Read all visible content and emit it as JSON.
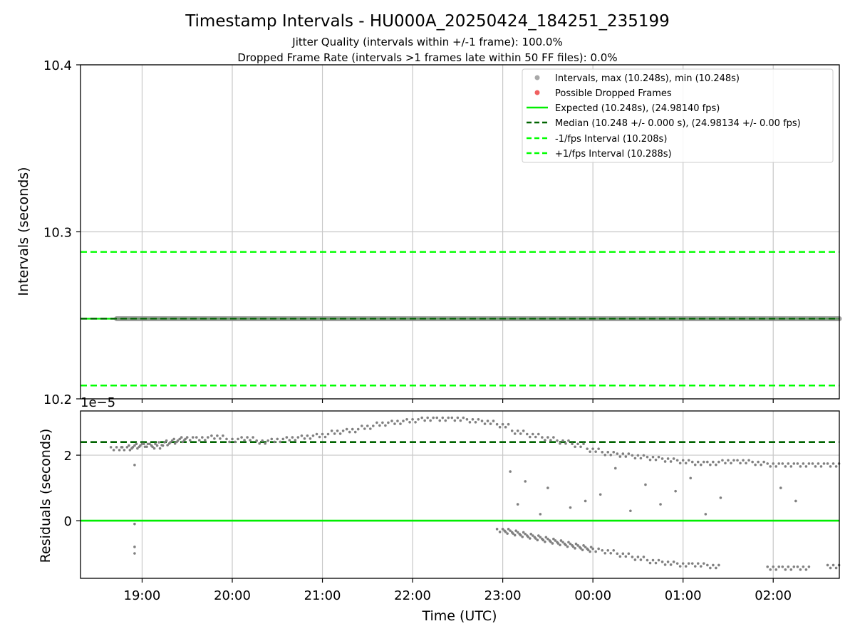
{
  "title": "Timestamp Intervals - HU000A_20250424_184251_235199",
  "subtitle1": "Jitter Quality (intervals within +/-1 frame): 100.0%",
  "subtitle2": "Dropped Frame Rate (intervals >1 frames late within 50 FF files): 0.0%",
  "colors": {
    "expected": "#00ee00",
    "median": "#006400",
    "bounds": "#00ff00",
    "intervals": "#808080",
    "dropped": "#f06060",
    "grid": "#c8c8c8"
  },
  "chart_data": [
    {
      "type": "scatter",
      "panel": "intervals",
      "xlabel": "",
      "ylabel": "Intervals (seconds)",
      "ylim": [
        10.2,
        10.4
      ],
      "yticks": [
        10.2,
        10.3,
        10.4
      ],
      "ytick_labels": [
        "10.2",
        "10.3",
        "10.4"
      ],
      "xlim": [
        "18:19",
        "02:44"
      ],
      "grid": true,
      "legend_placement": "upper-right",
      "lines": [
        {
          "name": "Expected (10.248s), (24.98140 fps)",
          "y": 10.248,
          "style": "solid",
          "color_key": "expected"
        },
        {
          "name": "Median (10.248 +/- 0.000 s), (24.98134 +/- 0.00 fps)",
          "y": 10.248,
          "style": "dashed",
          "color_key": "median"
        },
        {
          "name": "-1/fps Interval (10.208s)",
          "y": 10.208,
          "style": "dashed",
          "color_key": "bounds"
        },
        {
          "name": "+1/fps Interval (10.288s)",
          "y": 10.288,
          "style": "dashed",
          "color_key": "bounds"
        }
      ],
      "series": [
        {
          "name": "Intervals, max (10.248s), min (10.248s)",
          "y": 10.248,
          "x_start": "18:43",
          "x_end": "02:44"
        },
        {
          "name": "Possible Dropped Frames",
          "values": []
        }
      ]
    },
    {
      "type": "scatter",
      "panel": "residuals",
      "xlabel": "Time (UTC)",
      "ylabel": "Residuals (seconds)",
      "y_scale_label": "1e−5",
      "ylim": [
        -1.76,
        3.35
      ],
      "yticks": [
        0,
        2
      ],
      "ytick_labels": [
        "0",
        "2"
      ],
      "xticks": [
        "19:00",
        "20:00",
        "21:00",
        "22:00",
        "23:00",
        "00:00",
        "01:00",
        "02:00"
      ],
      "grid": true,
      "reference_lines": [
        {
          "name": "Expected",
          "y": 0,
          "style": "solid",
          "color_key": "expected"
        },
        {
          "name": "Median",
          "y": 2.4,
          "style": "dashed",
          "color_key": "median"
        }
      ],
      "series": [
        {
          "name": "Residuals",
          "x": [
            "18:43",
            "18:50",
            "18:55",
            "19:00",
            "19:05",
            "19:10",
            "19:15",
            "19:20",
            "19:25",
            "19:30",
            "19:40",
            "19:50",
            "20:00",
            "20:10",
            "20:20",
            "20:30",
            "20:40",
            "20:50",
            "21:00",
            "21:10",
            "21:20",
            "21:30",
            "21:40",
            "21:50",
            "22:00",
            "22:10",
            "22:20",
            "22:30",
            "22:40",
            "22:50",
            "23:00",
            "23:10",
            "23:20",
            "23:30",
            "23:40",
            "23:50",
            "00:00",
            "00:10",
            "00:20",
            "00:30",
            "00:40",
            "00:50",
            "01:00",
            "01:10",
            "01:20",
            "01:30",
            "01:40",
            "01:50",
            "02:00",
            "02:10",
            "02:20",
            "02:30",
            "02:40"
          ],
          "values": [
            2.2,
            2.2,
            2.25,
            2.3,
            2.3,
            2.25,
            2.35,
            2.4,
            2.45,
            2.5,
            2.5,
            2.55,
            2.45,
            2.5,
            2.4,
            2.45,
            2.5,
            2.55,
            2.6,
            2.7,
            2.75,
            2.85,
            2.95,
            3.0,
            3.05,
            3.1,
            3.1,
            3.1,
            3.05,
            3.0,
            2.9,
            2.7,
            2.6,
            2.5,
            2.4,
            2.3,
            2.15,
            2.05,
            2.0,
            1.95,
            1.9,
            1.85,
            1.8,
            1.75,
            1.75,
            1.8,
            1.8,
            1.75,
            1.7,
            1.7,
            1.7,
            1.7,
            1.7
          ]
        },
        {
          "name": "Residuals (lower branch)",
          "x": [
            "23:00",
            "23:05",
            "23:10",
            "23:15",
            "23:20",
            "23:25",
            "23:30",
            "23:35",
            "23:40",
            "23:45",
            "23:50",
            "23:55",
            "00:00",
            "00:10",
            "00:20",
            "00:30",
            "00:40",
            "00:50",
            "01:00",
            "01:10",
            "01:20",
            "02:00",
            "02:10",
            "02:20",
            "02:40"
          ],
          "values": [
            -0.3,
            -0.35,
            -0.4,
            -0.45,
            -0.5,
            -0.55,
            -0.6,
            -0.65,
            -0.7,
            -0.75,
            -0.8,
            -0.85,
            -0.9,
            -0.95,
            -1.05,
            -1.15,
            -1.25,
            -1.3,
            -1.35,
            -1.35,
            -1.4,
            -1.45,
            -1.45,
            -1.45,
            -1.4
          ]
        },
        {
          "name": "Residuals (outliers)",
          "x": [
            "18:55",
            "18:55",
            "18:55",
            "18:55",
            "23:05",
            "23:10",
            "23:15",
            "23:25",
            "23:30",
            "23:45",
            "23:55",
            "00:05",
            "00:15",
            "00:25",
            "00:35",
            "00:45",
            "00:55",
            "01:05",
            "01:15",
            "01:25",
            "02:05",
            "02:15"
          ],
          "values": [
            1.7,
            -0.8,
            -1.0,
            -0.1,
            1.5,
            0.5,
            1.2,
            0.2,
            1.0,
            0.4,
            0.6,
            0.8,
            1.6,
            0.3,
            1.1,
            0.5,
            0.9,
            1.3,
            0.2,
            0.7,
            1.0,
            0.6
          ]
        }
      ]
    }
  ]
}
